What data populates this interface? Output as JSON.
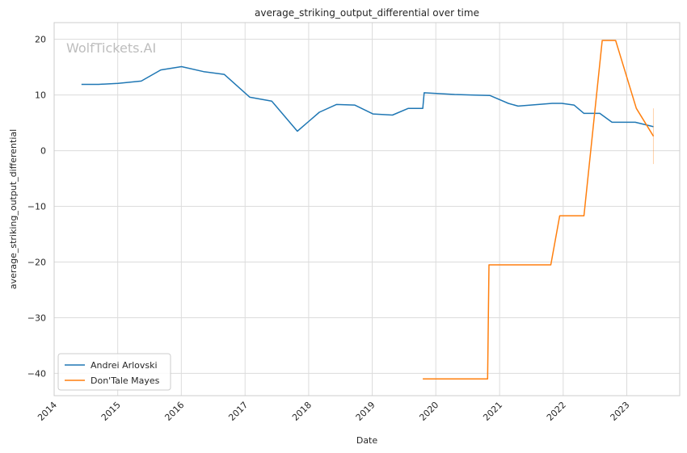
{
  "chart_data": {
    "type": "line",
    "title": "average_striking_output_differential over time",
    "xlabel": "Date",
    "ylabel": "average_striking_output_differential",
    "watermark": "WolfTickets.AI",
    "xlim": [
      "2014-01-01",
      "2023-11-01"
    ],
    "ylim": [
      -44,
      23
    ],
    "grid": true,
    "legend_position": "lower-left",
    "x_ticks": [
      "2014",
      "2015",
      "2016",
      "2017",
      "2018",
      "2019",
      "2020",
      "2021",
      "2022",
      "2023"
    ],
    "y_ticks": [
      20,
      10,
      0,
      -10,
      -20,
      -30,
      -40
    ],
    "y_tick_labels": [
      "20",
      "10",
      "0",
      "−10",
      "−20",
      "−30",
      "−40"
    ],
    "series": [
      {
        "name": "Andrei Arlovski",
        "color": "#1f77b4",
        "points": [
          [
            "2014-06-07",
            11.9
          ],
          [
            "2014-09-13",
            11.9
          ],
          [
            "2015-01-03",
            12.1
          ],
          [
            "2015-05-16",
            12.5
          ],
          [
            "2015-09-05",
            14.5
          ],
          [
            "2016-01-02",
            15.1
          ],
          [
            "2016-05-08",
            14.2
          ],
          [
            "2016-09-03",
            13.7
          ],
          [
            "2017-01-28",
            9.6
          ],
          [
            "2017-06-03",
            8.9
          ],
          [
            "2017-10-28",
            3.5
          ],
          [
            "2018-03-03",
            6.9
          ],
          [
            "2018-06-09",
            8.3
          ],
          [
            "2018-09-22",
            8.2
          ],
          [
            "2019-01-05",
            6.6
          ],
          [
            "2019-04-27",
            6.4
          ],
          [
            "2019-07-27",
            7.6
          ],
          [
            "2019-10-18",
            7.6
          ],
          [
            "2019-10-26",
            10.4
          ],
          [
            "2020-04-18",
            10.1
          ],
          [
            "2020-07-21",
            10.0
          ],
          [
            "2020-11-07",
            9.9
          ],
          [
            "2021-02-20",
            8.5
          ],
          [
            "2021-04-17",
            8.0
          ],
          [
            "2021-10-30",
            8.5
          ],
          [
            "2021-12-24",
            8.5
          ],
          [
            "2022-03-04",
            8.2
          ],
          [
            "2022-04-30",
            6.7
          ],
          [
            "2022-07-30",
            6.7
          ],
          [
            "2022-10-08",
            5.1
          ],
          [
            "2023-02-19",
            5.1
          ],
          [
            "2023-06-03",
            4.3
          ]
        ]
      },
      {
        "name": "Don'Tale Mayes",
        "color": "#ff7f0e",
        "points": [
          [
            "2019-10-18",
            -41.0
          ],
          [
            "2020-10-24",
            -41.0
          ],
          [
            "2020-11-01",
            -20.5
          ],
          [
            "2021-10-22",
            -20.5
          ],
          [
            "2021-12-12",
            -11.7
          ],
          [
            "2022-04-30",
            -11.7
          ],
          [
            "2022-08-13",
            19.8
          ],
          [
            "2022-10-29",
            19.8
          ],
          [
            "2023-02-25",
            7.6
          ],
          [
            "2023-06-03",
            2.6
          ]
        ],
        "error_bar": {
          "x": "2023-06-03",
          "low": -2.4,
          "high": 7.6
        }
      }
    ]
  }
}
